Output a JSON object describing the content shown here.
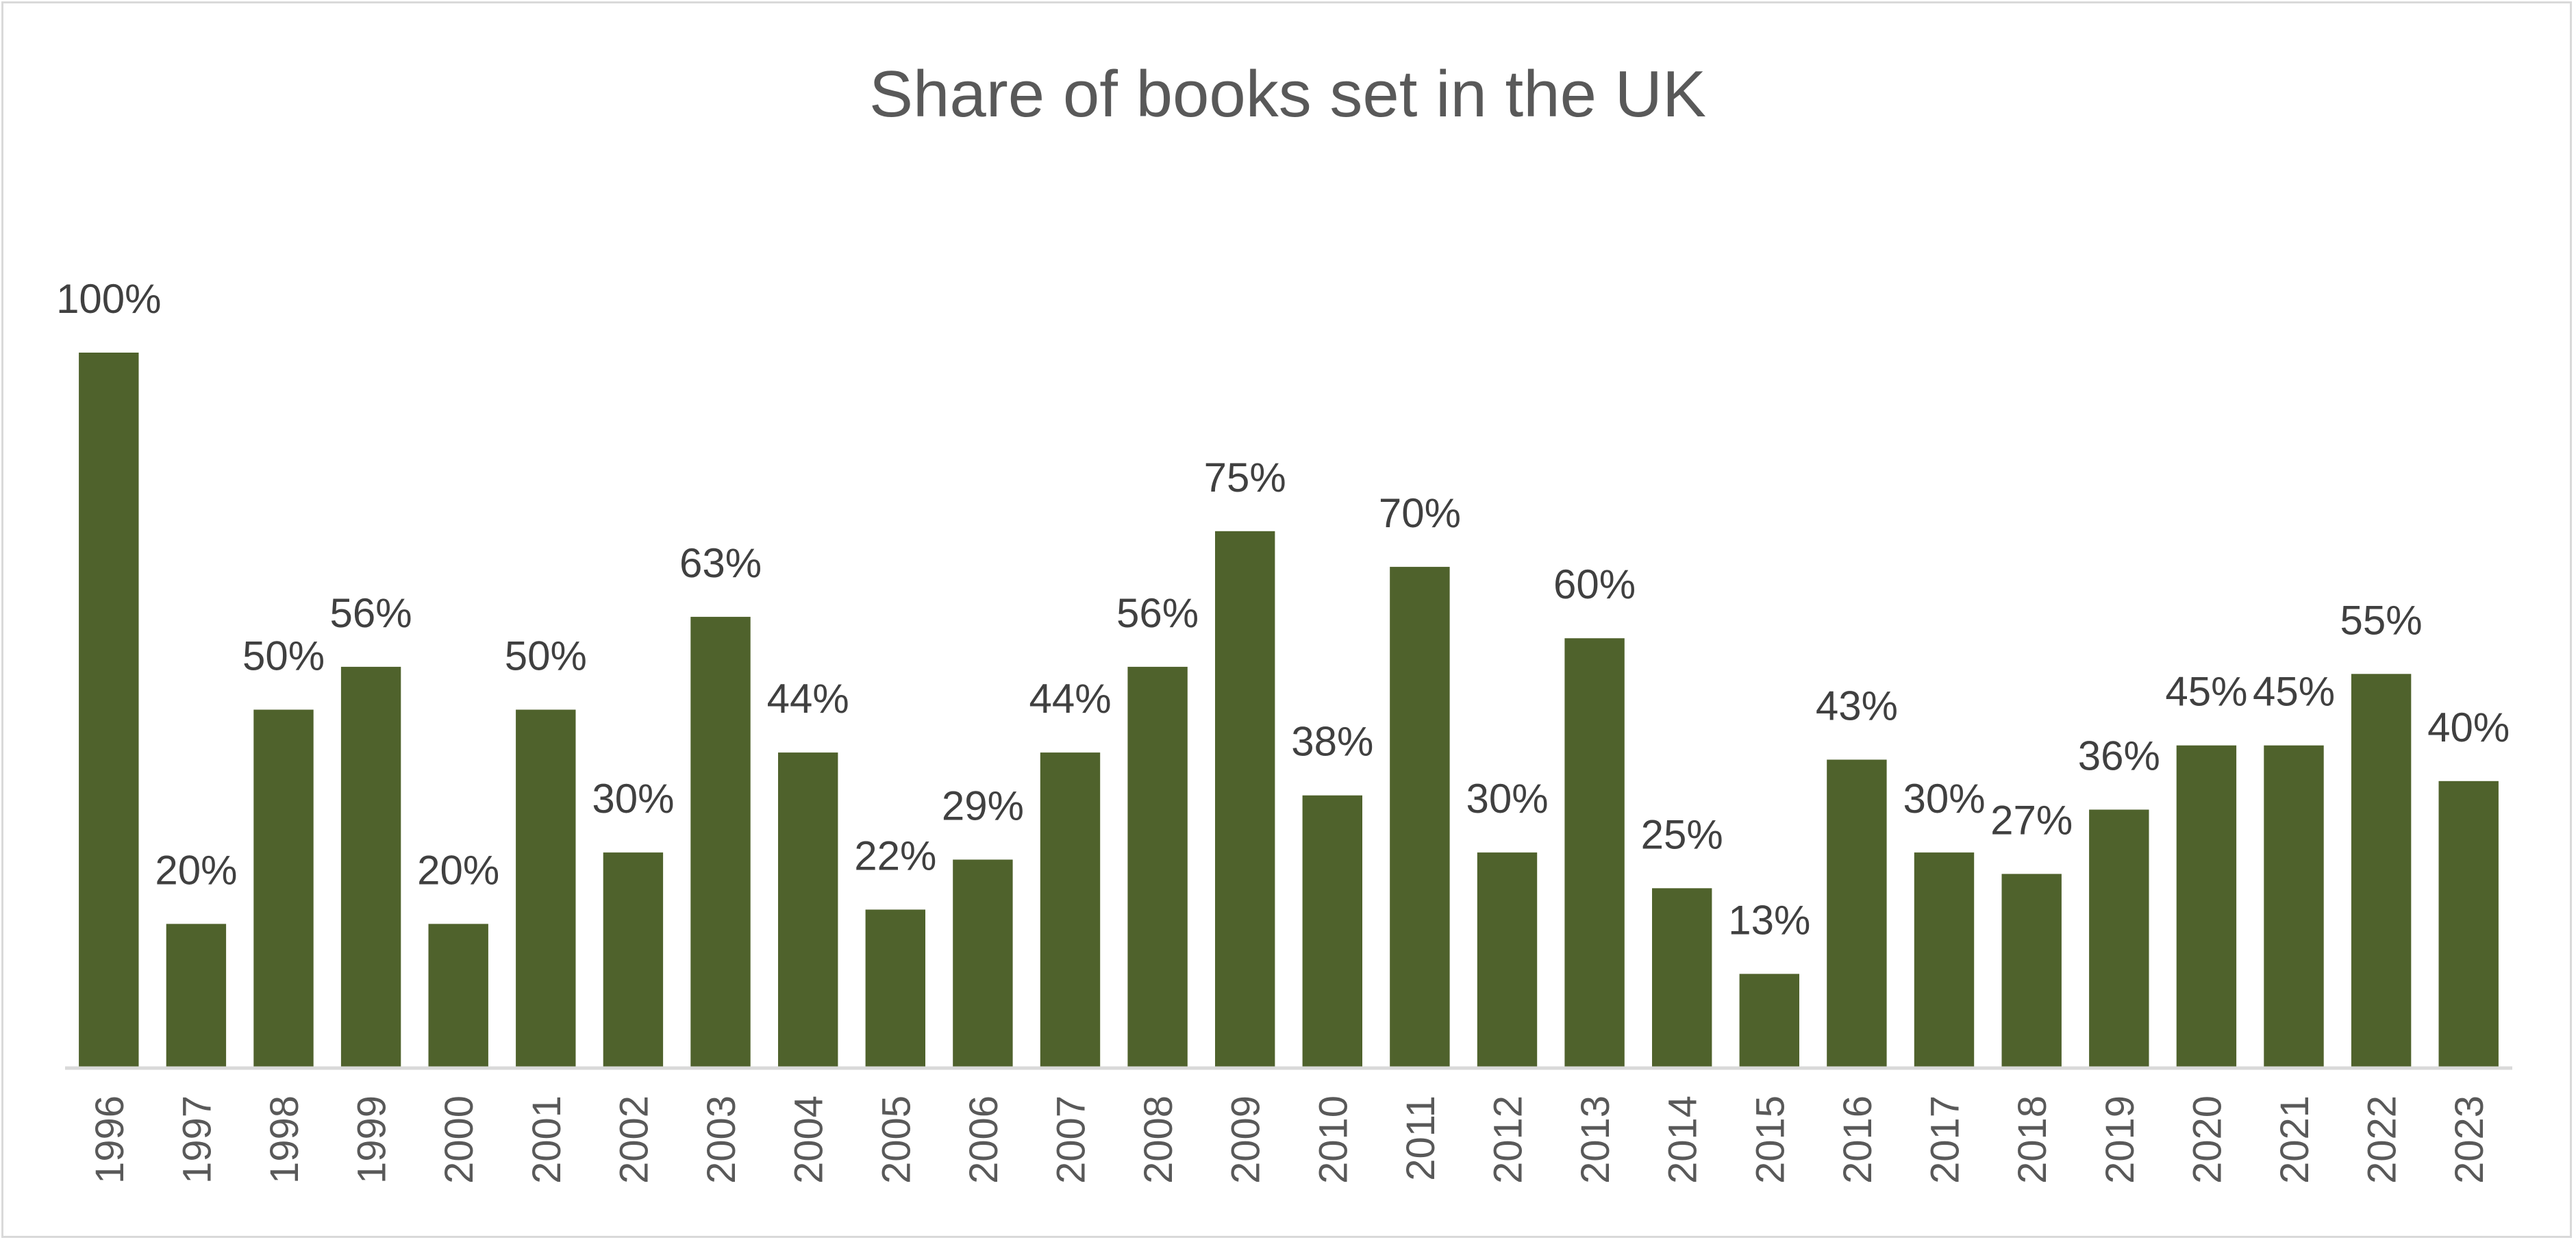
{
  "chart_data": {
    "type": "bar",
    "title": "Share of books set in the UK",
    "xlabel": "",
    "ylabel": "",
    "ylim": [
      0,
      1
    ],
    "grid": false,
    "legend": "none",
    "color": "#4f622c",
    "categories": [
      "1996",
      "1997",
      "1998",
      "1999",
      "2000",
      "2001",
      "2002",
      "2003",
      "2004",
      "2005",
      "2006",
      "2007",
      "2008",
      "2009",
      "2010",
      "2011",
      "2012",
      "2013",
      "2014",
      "2015",
      "2016",
      "2017",
      "2018",
      "2019",
      "2020",
      "2021",
      "2022",
      "2023"
    ],
    "values": [
      1.0,
      0.2,
      0.5,
      0.56,
      0.2,
      0.5,
      0.3,
      0.63,
      0.44,
      0.22,
      0.29,
      0.44,
      0.56,
      0.75,
      0.38,
      0.7,
      0.3,
      0.6,
      0.25,
      0.13,
      0.43,
      0.3,
      0.27,
      0.36,
      0.45,
      0.45,
      0.55,
      0.4
    ],
    "labels": [
      "100%",
      "20%",
      "50%",
      "56%",
      "20%",
      "50%",
      "30%",
      "63%",
      "44%",
      "22%",
      "29%",
      "44%",
      "56%",
      "75%",
      "38%",
      "70%",
      "30%",
      "60%",
      "25%",
      "13%",
      "43%",
      "30%",
      "27%",
      "36%",
      "45%",
      "45%",
      "55%",
      "40%"
    ]
  }
}
